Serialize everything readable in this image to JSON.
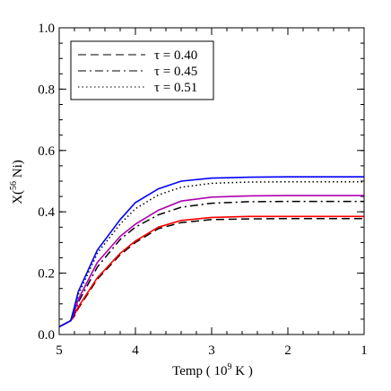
{
  "chart_data": {
    "type": "line",
    "xlabel_main": "Temp ( 10",
    "xlabel_sup": "9",
    "xlabel_end": " K )",
    "ylabel_main": "X(",
    "ylabel_sup": "56",
    "ylabel_end": " Ni)",
    "xlim": [
      5,
      1
    ],
    "ylim": [
      0.0,
      1.0
    ],
    "xticks": [
      5,
      4,
      3,
      2,
      1
    ],
    "xtick_labels": [
      "5",
      "4",
      "3",
      "2",
      "1"
    ],
    "yticks": [
      0.0,
      0.2,
      0.4,
      0.6,
      0.8,
      1.0
    ],
    "ytick_labels": [
      "0.0",
      "0.2",
      "0.4",
      "0.6",
      "0.8",
      "1.0"
    ],
    "legend_position": "top-left",
    "legend": [
      {
        "label": "τ = 0.40",
        "dash": "dashed"
      },
      {
        "label": "τ = 0.45",
        "dash": "dashdot"
      },
      {
        "label": "τ = 0.51",
        "dash": "dotted"
      }
    ],
    "series": [
      {
        "name": "τ = 0.40",
        "color": "#000000",
        "dash": "dashed",
        "x": [
          5.0,
          4.85,
          4.8,
          4.75,
          4.5,
          4.2,
          4.0,
          3.7,
          3.4,
          3.0,
          2.5,
          2.0,
          1.0
        ],
        "y": [
          0.025,
          0.045,
          0.06,
          0.085,
          0.18,
          0.26,
          0.3,
          0.345,
          0.365,
          0.375,
          0.377,
          0.378,
          0.378
        ]
      },
      {
        "name": "",
        "color": "#ff0000",
        "dash": "solid",
        "x": [
          5.0,
          4.85,
          4.8,
          4.75,
          4.5,
          4.2,
          4.0,
          3.7,
          3.4,
          3.0,
          2.5,
          2.0,
          1.0
        ],
        "y": [
          0.025,
          0.045,
          0.065,
          0.09,
          0.185,
          0.265,
          0.305,
          0.35,
          0.372,
          0.382,
          0.385,
          0.385,
          0.385
        ]
      },
      {
        "name": "τ = 0.45",
        "color": "#000000",
        "dash": "dashdot",
        "x": [
          5.0,
          4.85,
          4.8,
          4.75,
          4.5,
          4.2,
          4.0,
          3.7,
          3.4,
          3.0,
          2.5,
          2.0,
          1.0
        ],
        "y": [
          0.025,
          0.045,
          0.07,
          0.105,
          0.22,
          0.31,
          0.35,
          0.39,
          0.415,
          0.428,
          0.433,
          0.434,
          0.434
        ]
      },
      {
        "name": "",
        "color": "#b000b0",
        "dash": "solid",
        "x": [
          5.0,
          4.85,
          4.8,
          4.75,
          4.5,
          4.2,
          4.0,
          3.7,
          3.4,
          3.0,
          2.5,
          2.0,
          1.0
        ],
        "y": [
          0.025,
          0.045,
          0.075,
          0.115,
          0.235,
          0.32,
          0.36,
          0.405,
          0.435,
          0.448,
          0.452,
          0.453,
          0.453
        ]
      },
      {
        "name": "τ = 0.51",
        "color": "#000000",
        "dash": "dotted",
        "x": [
          5.0,
          4.85,
          4.8,
          4.75,
          4.5,
          4.2,
          4.0,
          3.7,
          3.4,
          3.0,
          2.5,
          2.0,
          1.0
        ],
        "y": [
          0.025,
          0.045,
          0.085,
          0.13,
          0.265,
          0.36,
          0.41,
          0.455,
          0.48,
          0.493,
          0.497,
          0.498,
          0.498
        ]
      },
      {
        "name": "",
        "color": "#0000ff",
        "dash": "solid",
        "x": [
          5.0,
          4.85,
          4.8,
          4.75,
          4.5,
          4.2,
          4.0,
          3.7,
          3.4,
          3.0,
          2.5,
          2.0,
          1.0
        ],
        "y": [
          0.025,
          0.045,
          0.09,
          0.14,
          0.275,
          0.375,
          0.43,
          0.475,
          0.5,
          0.51,
          0.513,
          0.514,
          0.514
        ]
      }
    ]
  }
}
